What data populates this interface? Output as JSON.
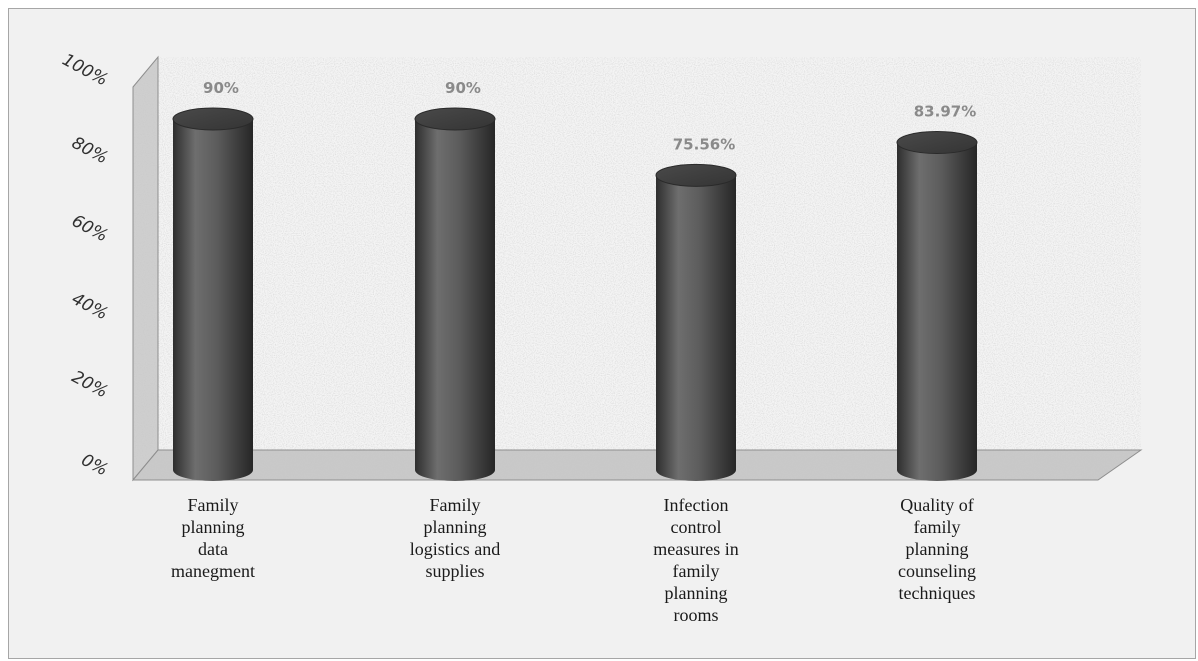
{
  "chart_data": {
    "type": "bar",
    "categories": [
      "Family planning data manegment",
      "Family planning logistics and supplies",
      "Infection control measures in family planning rooms",
      "Quality of family planning counseling techniques"
    ],
    "category_lines": [
      [
        "Family",
        "planning",
        "data",
        "manegment"
      ],
      [
        "Family",
        "planning",
        "logistics and",
        "supplies"
      ],
      [
        "Infection",
        "control",
        "measures in",
        "family",
        "planning",
        "rooms"
      ],
      [
        "Quality of",
        "family",
        "planning",
        "counseling",
        "techniques"
      ]
    ],
    "values": [
      90,
      90,
      75.56,
      83.97
    ],
    "data_labels": [
      "90%",
      "90%",
      "75.56%",
      "83.97%"
    ],
    "ylim": [
      0,
      100
    ],
    "yticks": [
      0,
      20,
      40,
      60,
      80,
      100
    ],
    "ytick_labels": [
      "0%",
      "20%",
      "40%",
      "60%",
      "80%",
      "100%"
    ],
    "bar_color": "#5a5a5a",
    "bar_style": "3d-cylinder",
    "grid": false,
    "legend": "none"
  }
}
